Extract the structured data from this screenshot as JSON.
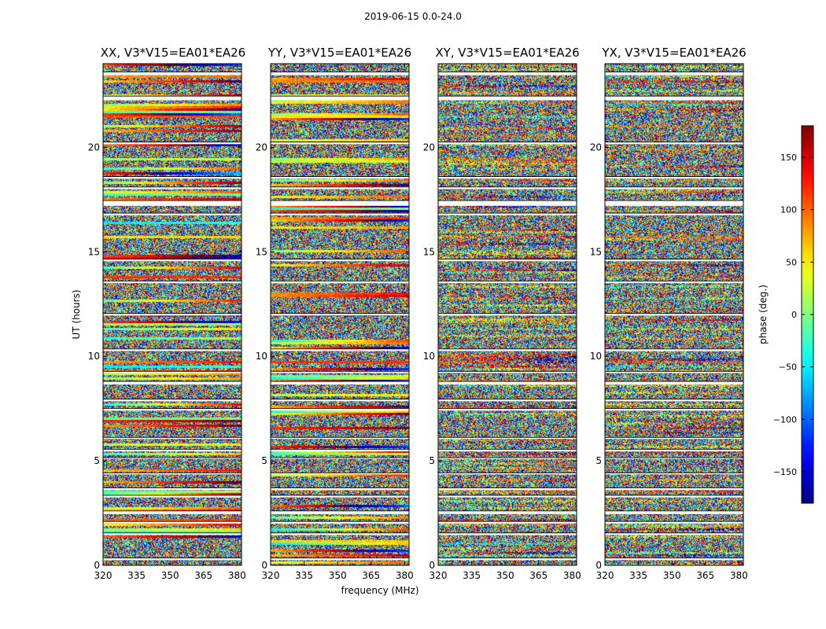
{
  "figure": {
    "suptitle": "2019-06-15 0.0-24.0"
  },
  "chart_data": {
    "type": "heatmap",
    "suptitle": "2019-06-15 0.0-24.0",
    "xlabel": "frequency (MHz)",
    "ylabel": "UT (hours)",
    "xlim": [
      320,
      382
    ],
    "ylim": [
      0,
      24
    ],
    "x_ticks": [
      320,
      335,
      350,
      365,
      380
    ],
    "y_ticks": [
      0,
      5,
      10,
      15,
      20
    ],
    "colormap": "jet",
    "colorbar": {
      "label": "phase (deg.)",
      "range": [
        -180,
        180
      ],
      "ticks": [
        -150,
        -100,
        -50,
        0,
        50,
        100,
        150
      ]
    },
    "panels": [
      {
        "title": "XX, V3*V15=EA01*EA26",
        "polarization": "XX"
      },
      {
        "title": "YY, V3*V15=EA01*EA26",
        "polarization": "YY"
      },
      {
        "title": "XY, V3*V15=EA01*EA26",
        "polarization": "XY"
      },
      {
        "title": "YX, V3*V15=EA01*EA26",
        "polarization": "YX"
      }
    ],
    "flagged_gaps_hours": [
      [
        0.25,
        0.35
      ],
      [
        1.45,
        1.55
      ],
      [
        2.0,
        2.1
      ],
      [
        2.45,
        2.6
      ],
      [
        3.25,
        3.35
      ],
      [
        3.6,
        3.7
      ],
      [
        4.35,
        4.42
      ],
      [
        5.1,
        5.15
      ],
      [
        5.45,
        5.55
      ],
      [
        6.05,
        6.12
      ],
      [
        7.4,
        7.5
      ],
      [
        7.85,
        7.95
      ],
      [
        8.65,
        8.8
      ],
      [
        9.2,
        9.28
      ],
      [
        10.25,
        10.35
      ],
      [
        11.95,
        12.05
      ],
      [
        13.5,
        13.6
      ],
      [
        14.55,
        14.65
      ],
      [
        16.75,
        16.85
      ],
      [
        17.2,
        17.45
      ],
      [
        18.0,
        18.1
      ],
      [
        18.5,
        18.6
      ],
      [
        20.15,
        20.25
      ],
      [
        22.25,
        22.45
      ],
      [
        23.45,
        23.6
      ]
    ]
  }
}
